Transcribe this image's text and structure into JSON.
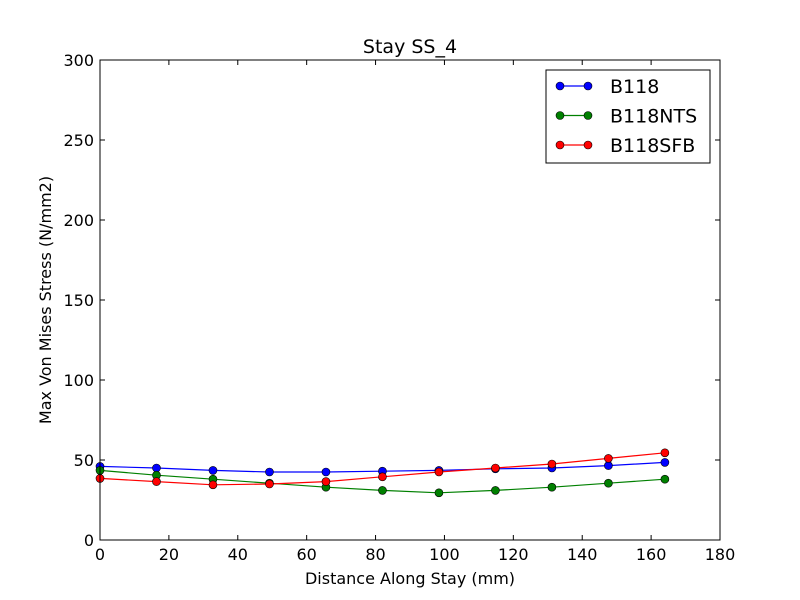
{
  "chart_data": {
    "type": "line",
    "title": "Stay SS_4",
    "xlabel": "Distance Along Stay (mm)",
    "ylabel": "Max Von Mises Stress (N/mm2)",
    "xlim": [
      0,
      180
    ],
    "ylim": [
      0,
      300
    ],
    "xticks": [
      0,
      20,
      40,
      60,
      80,
      100,
      120,
      140,
      160,
      180
    ],
    "yticks": [
      0,
      50,
      100,
      150,
      200,
      250,
      300
    ],
    "grid": false,
    "legend_position": "top-right",
    "x": [
      0,
      16.4,
      32.8,
      49.2,
      65.6,
      82.0,
      98.4,
      114.8,
      131.2,
      147.6,
      164.0
    ],
    "series": [
      {
        "name": "B118",
        "color": "#0000ff",
        "marker": "circle",
        "values": [
          46,
          45,
          43.5,
          42.5,
          42.5,
          43,
          43.5,
          44.5,
          45,
          46.5,
          48.5
        ]
      },
      {
        "name": "B118NTS",
        "color": "#008000",
        "marker": "circle",
        "values": [
          43.5,
          40.5,
          38,
          35.5,
          33,
          31,
          29.5,
          31,
          33,
          35.5,
          38
        ]
      },
      {
        "name": "B118SFB",
        "color": "#ff0000",
        "marker": "circle",
        "values": [
          38.5,
          36.5,
          34.5,
          35,
          36.5,
          39.5,
          42.5,
          45,
          47.5,
          51,
          54.5
        ]
      }
    ]
  }
}
